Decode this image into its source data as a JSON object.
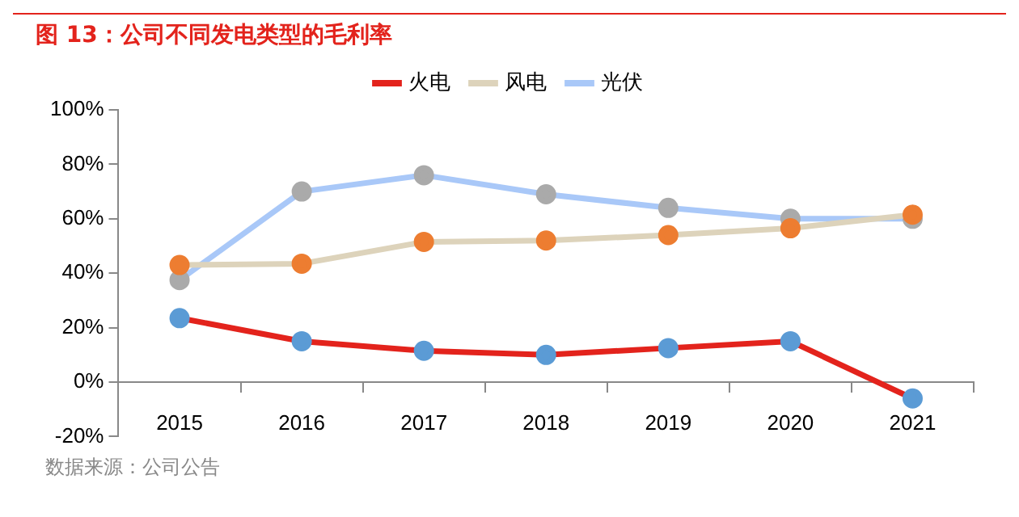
{
  "chart_data": {
    "type": "line",
    "title": "图 13：公司不同发电类型的毛利率",
    "annotations": [
      "数据来源：公司公告"
    ],
    "categories": [
      "2015",
      "2016",
      "2017",
      "2018",
      "2019",
      "2020",
      "2021"
    ],
    "series": [
      {
        "name": "火电",
        "color": "#e3231c",
        "colors": [
          "#5b9bd5",
          "#5b9bd5",
          "#5b9bd5",
          "#5b9bd5",
          "#5b9bd5",
          "#5b9bd5",
          "#5b9bd5"
        ],
        "values": [
          23.5,
          15,
          11.5,
          10,
          12.5,
          15,
          -6
        ]
      },
      {
        "name": "风电",
        "color": "#ddd3bb",
        "colors": [
          "#ed7d31",
          "#ed7d31",
          "#ed7d31",
          "#ed7d31",
          "#ed7d31",
          "#ed7d31",
          "#ed7d31"
        ],
        "values": [
          43,
          43.5,
          51.5,
          52,
          54,
          56.5,
          61.5
        ]
      },
      {
        "name": "光伏",
        "color": "#a9c8f8",
        "colors": [
          "#aaaaaa",
          "#aaaaaa",
          "#aaaaaa",
          "#aaaaaa",
          "#aaaaaa",
          "#aaaaaa",
          "#aaaaaa"
        ],
        "values": [
          37.5,
          70,
          76,
          69,
          64,
          60,
          60
        ]
      }
    ],
    "ylim": [
      -20,
      100
    ],
    "yticks": [
      {
        "value": -20,
        "label": "-20%"
      },
      {
        "value": 0,
        "label": "0%"
      },
      {
        "value": 20,
        "label": "20%"
      },
      {
        "value": 40,
        "label": "40%"
      },
      {
        "value": 60,
        "label": "60%"
      },
      {
        "value": 80,
        "label": "80%"
      },
      {
        "value": 100,
        "label": "100%"
      }
    ],
    "grid": false,
    "legend": "top",
    "marker": "circle",
    "line_style": "solid"
  }
}
